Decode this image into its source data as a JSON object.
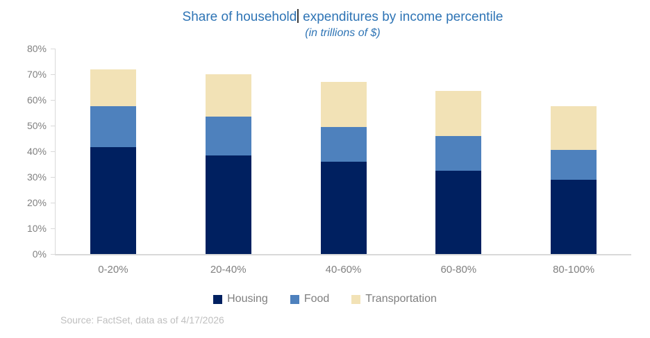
{
  "colors": {
    "title_text": "#2E74B5",
    "axis_text": "#808080",
    "legend_text": "#7F7F7F",
    "source_text": "#BFBFBF",
    "axis_line": "#D9D9D9",
    "housing": "#002060",
    "food": "#4E81BD",
    "transportation": "#F2E2B6"
  },
  "chart_data": {
    "type": "bar",
    "stacked": true,
    "title": "Share of household expenditures by income percentile",
    "title_segments": [
      "Share of household",
      " expenditures by income percentile"
    ],
    "subtitle": "(in trillions of $)",
    "categories": [
      "0-20%",
      "20-40%",
      "40-60%",
      "60-80%",
      "80-100%"
    ],
    "series": [
      {
        "name": "Housing",
        "color": "#002060",
        "values": [
          41.5,
          38.5,
          36.0,
          32.5,
          29.0
        ]
      },
      {
        "name": "Food",
        "color": "#4E81BD",
        "values": [
          16.0,
          15.0,
          13.5,
          13.5,
          11.5
        ]
      },
      {
        "name": "Transportation",
        "color": "#F2E2B6",
        "values": [
          14.5,
          16.5,
          17.5,
          17.5,
          17.0
        ]
      }
    ],
    "stack_totals": [
      72.0,
      70.0,
      67.0,
      63.5,
      57.5
    ],
    "ylim": [
      0,
      80
    ],
    "ytick_step": 10,
    "ytick_labels": [
      "0%",
      "10%",
      "20%",
      "30%",
      "40%",
      "50%",
      "60%",
      "70%",
      "80%"
    ],
    "grid": false,
    "legend_position": "bottom"
  },
  "source_note": "Source: FactSet, data as of 4/17/2026"
}
